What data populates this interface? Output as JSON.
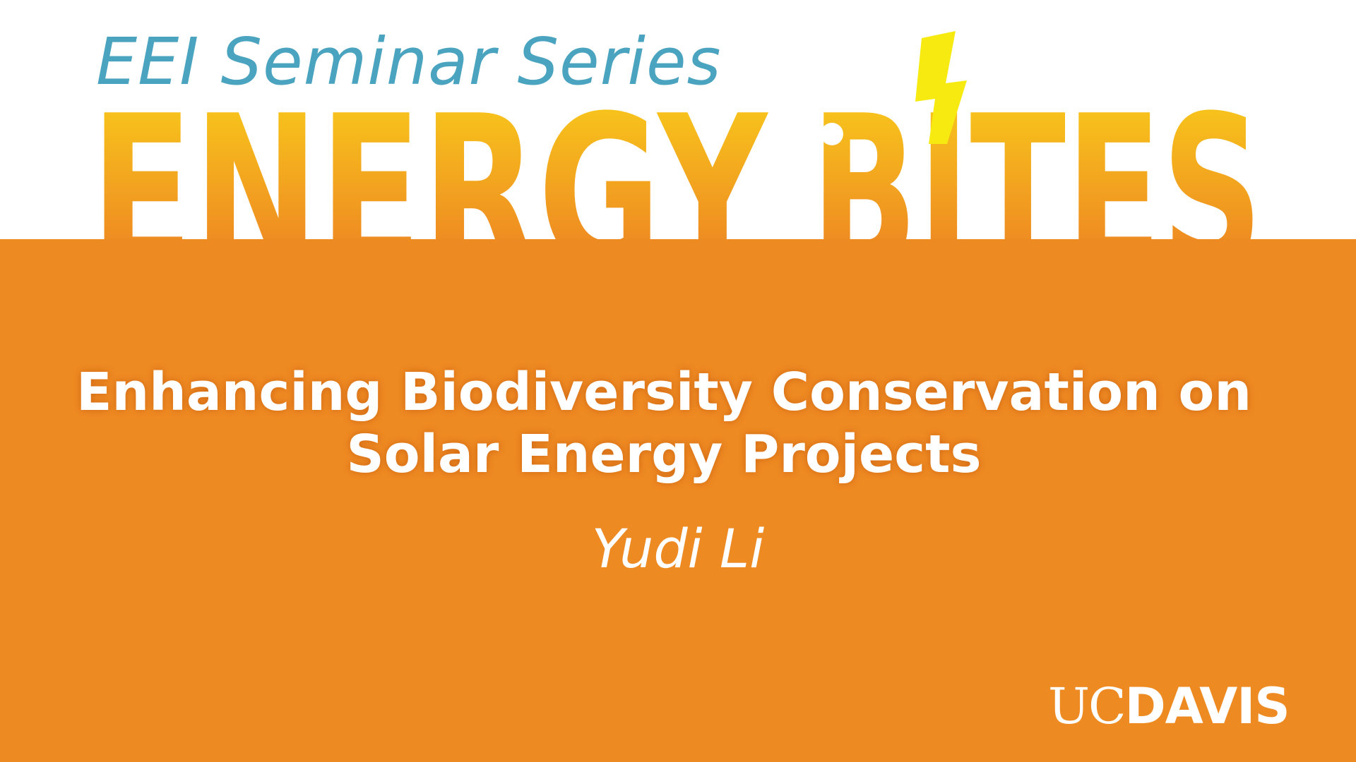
{
  "series": {
    "title": "EEI Seminar Series"
  },
  "logo": {
    "word_left": "ENERGY",
    "word_right": "BITES",
    "gradient_top": "#f7c11c",
    "gradient_bottom": "#ee8a22",
    "bolt_color": "#f7ea10",
    "bolt_icon": "lightning-bolt-icon"
  },
  "talk": {
    "title": "Enhancing Biodiversity Conservation on Solar Energy Projects",
    "speaker": "Yudi Li"
  },
  "branding": {
    "org_uc": "UC",
    "org_davis": "DAVIS"
  },
  "colors": {
    "band": "#ee8a22",
    "series_text": "#4aa3bf",
    "text_on_band": "#ffffff"
  }
}
